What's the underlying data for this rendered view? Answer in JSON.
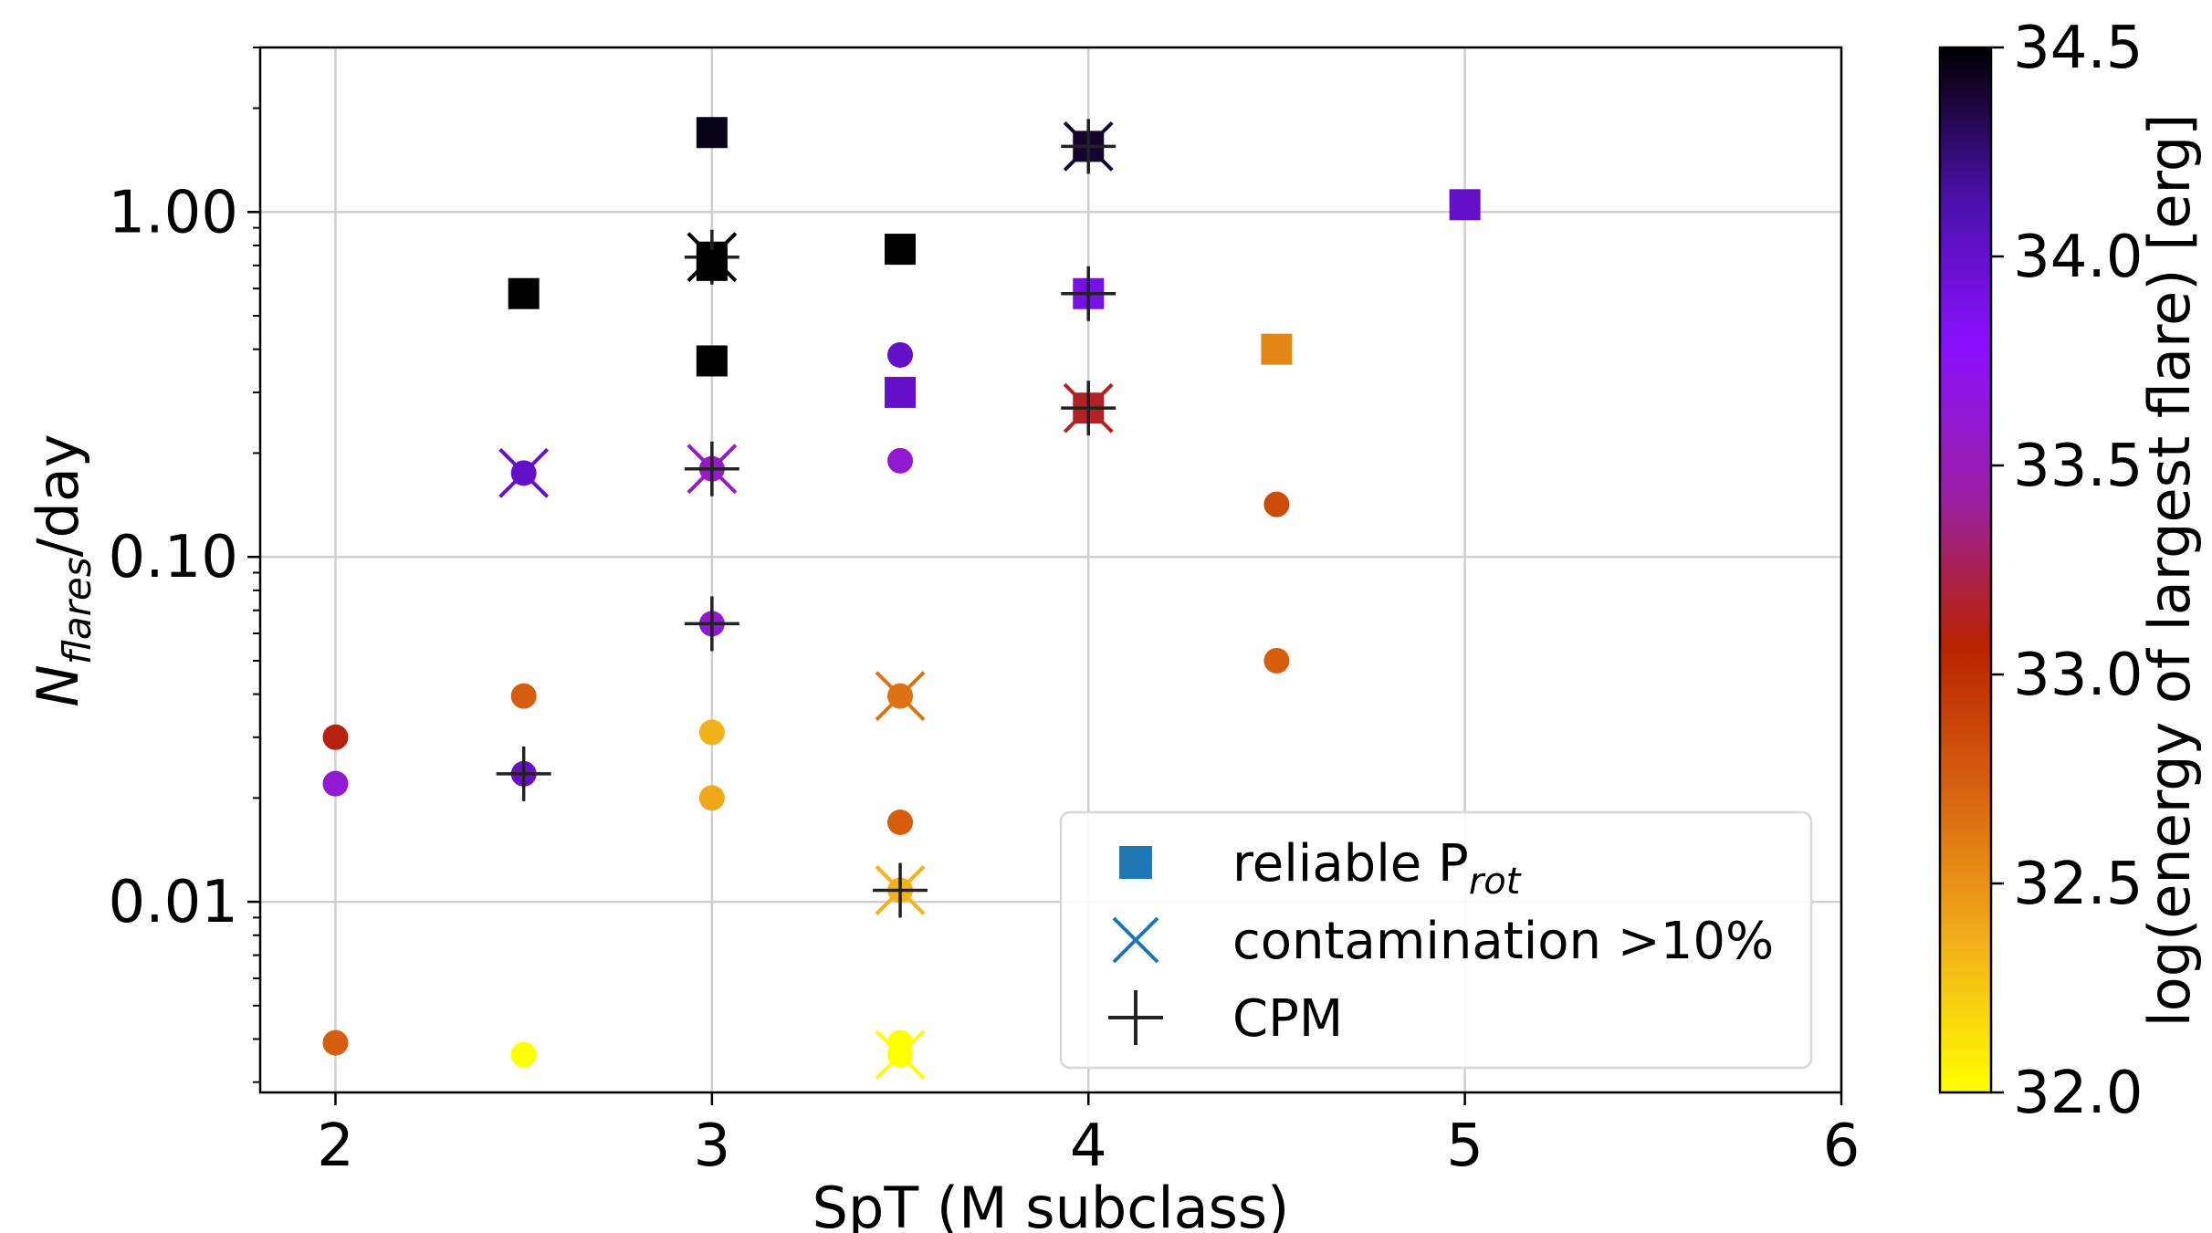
{
  "chart_data": {
    "type": "scatter",
    "title": "",
    "xlabel": "SpT (M subclass)",
    "ylabel_parts": {
      "base": "N",
      "sub": "flares",
      "rest": "/day"
    },
    "xlim": [
      1.8,
      6
    ],
    "ylim": [
      0.0028,
      3.0
    ],
    "yscale": "log",
    "grid": true,
    "x_ticks": [
      "2",
      "3",
      "4",
      "5",
      "6"
    ],
    "y_ticks": [
      {
        "value": 0.01,
        "label": "0.01"
      },
      {
        "value": 0.1,
        "label": "0.10"
      },
      {
        "value": 1.0,
        "label": "1.00"
      }
    ],
    "colorbar": {
      "label": "log(energy of largest flare) [erg]",
      "min": 32.0,
      "max": 34.5,
      "ticks": [
        "32.0",
        "32.5",
        "33.0",
        "33.5",
        "34.0",
        "34.5"
      ],
      "colors": [
        "#ffff00",
        "#f3b01a",
        "#d96410",
        "#b82200",
        "#9b20a6",
        "#8b10ff",
        "#4a10a8",
        "#000000"
      ]
    },
    "legend": {
      "placement": "lower-right",
      "entries": [
        {
          "marker": "square",
          "label_base": "reliable P",
          "label_sub": "rot"
        },
        {
          "marker": "x",
          "label_base": "contamination >10%",
          "label_sub": ""
        },
        {
          "marker": "plus",
          "label_base": "CPM",
          "label_sub": ""
        }
      ]
    },
    "points": [
      {
        "x": 3.0,
        "y": 1.7,
        "energy": 34.45,
        "prot": true,
        "cont": false,
        "cpm": false
      },
      {
        "x": 4.0,
        "y": 1.55,
        "energy": 34.4,
        "prot": true,
        "cont": true,
        "cpm": true
      },
      {
        "x": 5.0,
        "y": 1.05,
        "energy": 34.0,
        "prot": true,
        "cont": false,
        "cpm": false
      },
      {
        "x": 2.5,
        "y": 0.58,
        "energy": 34.5,
        "prot": true,
        "cont": false,
        "cpm": false
      },
      {
        "x": 3.0,
        "y": 0.74,
        "energy": 34.5,
        "prot": true,
        "cont": true,
        "cpm": true
      },
      {
        "x": 3.0,
        "y": 0.7,
        "energy": 34.5,
        "prot": true,
        "cont": false,
        "cpm": false
      },
      {
        "x": 3.5,
        "y": 0.78,
        "energy": 34.5,
        "prot": true,
        "cont": false,
        "cpm": false
      },
      {
        "x": 4.0,
        "y": 0.58,
        "energy": 33.9,
        "prot": true,
        "cont": false,
        "cpm": true
      },
      {
        "x": 3.0,
        "y": 0.37,
        "energy": 34.5,
        "prot": true,
        "cont": false,
        "cpm": false
      },
      {
        "x": 3.5,
        "y": 0.385,
        "energy": 34.0,
        "prot": false,
        "cont": false,
        "cpm": false
      },
      {
        "x": 3.5,
        "y": 0.3,
        "energy": 34.0,
        "prot": true,
        "cont": false,
        "cpm": false
      },
      {
        "x": 4.5,
        "y": 0.4,
        "energy": 32.55,
        "prot": true,
        "cont": false,
        "cpm": false
      },
      {
        "x": 4.0,
        "y": 0.27,
        "energy": 33.15,
        "prot": true,
        "cont": true,
        "cpm": true
      },
      {
        "x": 2.5,
        "y": 0.175,
        "energy": 34.0,
        "prot": false,
        "cont": true,
        "cpm": false
      },
      {
        "x": 3.0,
        "y": 0.18,
        "energy": 33.55,
        "prot": false,
        "cont": true,
        "cpm": true
      },
      {
        "x": 3.5,
        "y": 0.19,
        "energy": 33.6,
        "prot": false,
        "cont": false,
        "cpm": false
      },
      {
        "x": 4.5,
        "y": 0.142,
        "energy": 32.85,
        "prot": false,
        "cont": false,
        "cpm": false
      },
      {
        "x": 3.0,
        "y": 0.064,
        "energy": 33.6,
        "prot": false,
        "cont": false,
        "cpm": true
      },
      {
        "x": 4.5,
        "y": 0.05,
        "energy": 32.75,
        "prot": false,
        "cont": false,
        "cpm": false
      },
      {
        "x": 2.0,
        "y": 0.03,
        "energy": 33.1,
        "prot": false,
        "cont": false,
        "cpm": false
      },
      {
        "x": 2.0,
        "y": 0.022,
        "energy": 33.6,
        "prot": false,
        "cont": false,
        "cpm": false
      },
      {
        "x": 2.5,
        "y": 0.0395,
        "energy": 32.75,
        "prot": false,
        "cont": false,
        "cpm": false
      },
      {
        "x": 2.5,
        "y": 0.0235,
        "energy": 34.0,
        "prot": false,
        "cont": false,
        "cpm": true
      },
      {
        "x": 3.0,
        "y": 0.031,
        "energy": 32.35,
        "prot": false,
        "cont": false,
        "cpm": false
      },
      {
        "x": 3.0,
        "y": 0.02,
        "energy": 32.4,
        "prot": false,
        "cont": false,
        "cpm": false
      },
      {
        "x": 3.5,
        "y": 0.0395,
        "energy": 32.65,
        "prot": false,
        "cont": true,
        "cpm": false
      },
      {
        "x": 3.5,
        "y": 0.017,
        "energy": 32.75,
        "prot": false,
        "cont": false,
        "cpm": false
      },
      {
        "x": 3.5,
        "y": 0.0108,
        "energy": 32.35,
        "prot": false,
        "cont": true,
        "cpm": true
      },
      {
        "x": 2.0,
        "y": 0.0039,
        "energy": 32.75,
        "prot": false,
        "cont": false,
        "cpm": false
      },
      {
        "x": 2.5,
        "y": 0.0036,
        "energy": 32.0,
        "prot": false,
        "cont": false,
        "cpm": false
      },
      {
        "x": 3.5,
        "y": 0.0039,
        "energy": 32.0,
        "prot": false,
        "cont": false,
        "cpm": false
      },
      {
        "x": 3.5,
        "y": 0.0036,
        "energy": 32.0,
        "prot": false,
        "cont": true,
        "cpm": false
      }
    ]
  }
}
